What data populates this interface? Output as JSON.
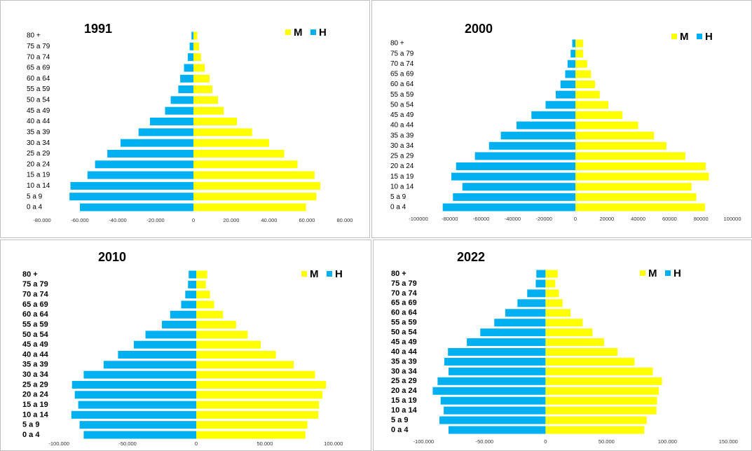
{
  "chart_data": [
    {
      "type": "bar",
      "title": "1991",
      "categories": [
        "80 +",
        "75 a 79",
        "70 a 74",
        "65 a 69",
        "60 a 64",
        "55 a 59",
        "50 a 54",
        "45 a 49",
        "40 a 44",
        "35 a 39",
        "30 a 34",
        "25 a 29",
        "20 a 24",
        "15 a 19",
        "10 a 14",
        "5 a 9",
        "0 a 4"
      ],
      "series": [
        {
          "name": "M",
          "color": "#ffff00",
          "values": [
            2000,
            3000,
            4000,
            6000,
            8500,
            10000,
            13000,
            16000,
            23000,
            31000,
            40000,
            48000,
            55000,
            64000,
            67000,
            65000,
            59500
          ]
        },
        {
          "name": "H",
          "color": "#00b0f0",
          "values": [
            -1000,
            -2000,
            -3000,
            -5000,
            -7000,
            -8000,
            -12000,
            -15000,
            -23000,
            -29000,
            -38500,
            -45500,
            -52000,
            -56000,
            -65000,
            -65500,
            -60000
          ]
        }
      ],
      "xlim": [
        -80000,
        80000
      ],
      "xticks": [
        {
          "value": -80000,
          "label": "-80.000"
        },
        {
          "value": -60000,
          "label": "-60.000"
        },
        {
          "value": -40000,
          "label": "-40.000"
        },
        {
          "value": -20000,
          "label": "-20.000"
        },
        0,
        {
          "value": 20000,
          "label": "20.000"
        },
        {
          "value": 40000,
          "label": "40.000"
        },
        {
          "value": 60000,
          "label": "60.000"
        },
        {
          "value": 80000,
          "label": "80.000"
        }
      ]
    },
    {
      "type": "bar",
      "title": "2000",
      "categories": [
        "80 +",
        "75 a 79",
        "70 a 74",
        "65 a 69",
        "60 a 64",
        "55 a 59",
        "50 a 54",
        "45 a 49",
        "40 a 44",
        "35 a 39",
        "30 a 34",
        "25 a 29",
        "20 a 24",
        "15 a 19",
        "10 a 14",
        "5 a 9",
        "0 a 4"
      ],
      "series": [
        {
          "name": "M",
          "color": "#ffff00",
          "values": [
            5000,
            5000,
            7500,
            10000,
            12500,
            15500,
            21000,
            30000,
            40000,
            50000,
            58000,
            70000,
            83000,
            85000,
            74000,
            77000,
            82500
          ]
        },
        {
          "name": "H",
          "color": "#00b0f0",
          "values": [
            -2000,
            -3000,
            -5000,
            -6500,
            -9500,
            -12500,
            -19000,
            -28000,
            -37500,
            -47500,
            -55000,
            -64000,
            -76000,
            -79000,
            -72000,
            -78000,
            -84500
          ]
        }
      ],
      "xlim": [
        -100000,
        100000
      ],
      "xticks": [
        -100000,
        -80000,
        -60000,
        -40000,
        -20000,
        0,
        20000,
        40000,
        60000,
        80000,
        100000
      ]
    },
    {
      "type": "bar",
      "title": "2010",
      "categories": [
        "80 +",
        "75 a 79",
        "70 a 74",
        "65 a 69",
        "60 a 64",
        "55 a 59",
        "50 a 54",
        "45 a 49",
        "40 a 44",
        "35 a 39",
        "30 a 34",
        "25 a 29",
        "20 a 24",
        "15 a 19",
        "10 a 14",
        "5 a 9",
        "0 a 4"
      ],
      "series": [
        {
          "name": "M",
          "color": "#ffff00",
          "values": [
            8000,
            7000,
            10000,
            13000,
            19500,
            29000,
            37500,
            47000,
            58000,
            71000,
            86500,
            94500,
            92000,
            89500,
            89000,
            81000,
            79500
          ]
        },
        {
          "name": "H",
          "color": "#00b0f0",
          "values": [
            -5500,
            -6000,
            -8000,
            -11000,
            -19000,
            -25000,
            -37000,
            -45500,
            -57000,
            -67500,
            -82000,
            -90500,
            -88500,
            -86000,
            -91000,
            -85000,
            -82000
          ]
        }
      ],
      "xlim": [
        -120000,
        120000
      ],
      "xticks": [
        {
          "value": -100000,
          "label": "-100.000"
        },
        {
          "value": -50000,
          "label": "-50.000"
        },
        0,
        {
          "value": 50000,
          "label": "50.000"
        },
        {
          "value": 100000,
          "label": "100.000"
        }
      ]
    },
    {
      "type": "bar",
      "title": "2022",
      "categories": [
        "80 +",
        "75 a 79",
        "70 a 74",
        "65 a 69",
        "60 a 64",
        "55 a 59",
        "50 a 54",
        "45 a 49",
        "40 a 44",
        "35 a 39",
        "30 a 34",
        "25 a 29",
        "20 a 24",
        "15 a 19",
        "10 a 14",
        "5 a 9",
        "0 a 4"
      ],
      "series": [
        {
          "name": "M",
          "color": "#ffff00",
          "values": [
            10000,
            8000,
            11000,
            14000,
            20500,
            30500,
            38500,
            48000,
            59000,
            73000,
            88000,
            95500,
            93000,
            91500,
            91000,
            83000,
            81000
          ]
        },
        {
          "name": "H",
          "color": "#00b0f0",
          "values": [
            -7500,
            -8000,
            -15000,
            -23000,
            -33000,
            -42000,
            -53500,
            -64500,
            -80000,
            -83000,
            -79500,
            -88500,
            -92500,
            -86000,
            -83500,
            -87000,
            -79500
          ]
        }
      ],
      "xlim": [
        -137000,
        155000
      ],
      "xticks": [
        {
          "value": -100000,
          "label": "-100.000"
        },
        {
          "value": -50000,
          "label": "-50.000"
        },
        0,
        {
          "value": 50000,
          "label": "50.000"
        },
        {
          "value": 100000,
          "label": "100.000"
        },
        {
          "value": 150000,
          "label": "150.000"
        }
      ]
    }
  ]
}
